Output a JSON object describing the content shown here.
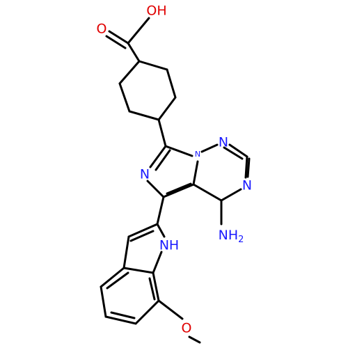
{
  "molecule": {
    "atoms": {
      "hydroxyl": "OH",
      "carbonyl_oxygen": "O",
      "ring_n6": "N",
      "bridge_n": "N",
      "triazine_n1": "N",
      "triazine_n3": "N",
      "indole_n": "N",
      "indole_h": "H",
      "methoxy_oxygen": "O"
    },
    "amine": {
      "text": "NH",
      "subscript": "2"
    }
  }
}
